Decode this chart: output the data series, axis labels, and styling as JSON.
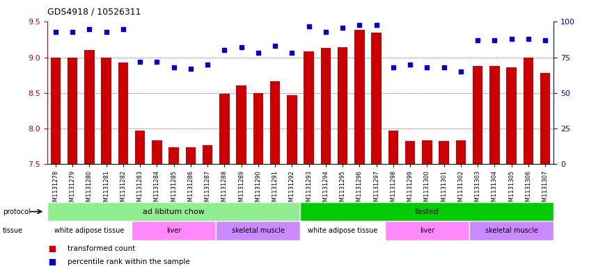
{
  "title": "GDS4918 / 10526311",
  "samples": [
    "GSM1131278",
    "GSM1131279",
    "GSM1131280",
    "GSM1131281",
    "GSM1131282",
    "GSM1131283",
    "GSM1131284",
    "GSM1131285",
    "GSM1131286",
    "GSM1131287",
    "GSM1131288",
    "GSM1131289",
    "GSM1131290",
    "GSM1131291",
    "GSM1131292",
    "GSM1131293",
    "GSM1131294",
    "GSM1131295",
    "GSM1131296",
    "GSM1131297",
    "GSM1131298",
    "GSM1131299",
    "GSM1131300",
    "GSM1131301",
    "GSM1131302",
    "GSM1131303",
    "GSM1131304",
    "GSM1131305",
    "GSM1131306",
    "GSM1131307"
  ],
  "red_values": [
    9.0,
    9.0,
    9.1,
    9.0,
    8.93,
    7.97,
    7.83,
    7.73,
    7.73,
    7.76,
    8.49,
    8.6,
    8.5,
    8.66,
    8.47,
    9.08,
    9.13,
    9.14,
    9.39,
    9.35,
    7.97,
    7.82,
    7.83,
    7.82,
    7.83,
    8.88,
    8.88,
    8.86,
    9.0,
    8.78
  ],
  "blue_values": [
    93,
    93,
    95,
    93,
    95,
    72,
    72,
    68,
    67,
    70,
    80,
    82,
    78,
    83,
    78,
    97,
    93,
    96,
    98,
    98,
    68,
    70,
    68,
    68,
    65,
    87,
    87,
    88,
    88,
    87
  ],
  "ylim_left": [
    7.5,
    9.5
  ],
  "ylim_right": [
    0,
    100
  ],
  "yticks_left": [
    7.5,
    8.0,
    8.5,
    9.0,
    9.5
  ],
  "yticks_right": [
    0,
    25,
    50,
    75,
    100
  ],
  "bar_color": "#cc0000",
  "dot_color": "#0000cc",
  "protocol_groups": [
    {
      "label": "ad libitum chow",
      "start": 0,
      "end": 14,
      "color": "#90ee90"
    },
    {
      "label": "fasted",
      "start": 15,
      "end": 29,
      "color": "#00cc00"
    }
  ],
  "tissue_groups": [
    {
      "label": "white adipose tissue",
      "start": 0,
      "end": 4,
      "color": "#ffffff"
    },
    {
      "label": "liver",
      "start": 5,
      "end": 9,
      "color": "#ff88ff"
    },
    {
      "label": "skeletal muscle",
      "start": 10,
      "end": 14,
      "color": "#cc88ff"
    },
    {
      "label": "white adipose tissue",
      "start": 15,
      "end": 19,
      "color": "#ffffff"
    },
    {
      "label": "liver",
      "start": 20,
      "end": 24,
      "color": "#ff88ff"
    },
    {
      "label": "skeletal muscle",
      "start": 25,
      "end": 29,
      "color": "#cc88ff"
    }
  ],
  "legend_items": [
    {
      "label": "transformed count",
      "color": "#cc0000",
      "marker": "s"
    },
    {
      "label": "percentile rank within the sample",
      "color": "#0000cc",
      "marker": "s"
    }
  ],
  "bg_color": "#ffffff",
  "grid_color": "#aaaaaa"
}
